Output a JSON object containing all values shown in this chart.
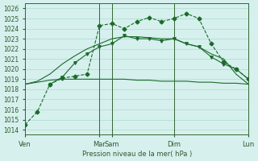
{
  "title": "",
  "xlabel": "Pression niveau de la mer( hPa )",
  "ylim": [
    1013.5,
    1026.5
  ],
  "yticks": [
    1014,
    1015,
    1016,
    1017,
    1018,
    1019,
    1020,
    1021,
    1022,
    1023,
    1024,
    1025,
    1026
  ],
  "bg_color": "#d6f0ee",
  "grid_color": "#aaddcc",
  "line_color": "#1a6b2a",
  "line_color2": "#2d8c4e",
  "xtick_labels": [
    "Ven",
    "",
    "Mar",
    "Sam",
    "",
    "Dim",
    "",
    "Lun"
  ],
  "xtick_positions": [
    0,
    3,
    6,
    7,
    9,
    12,
    15,
    18
  ],
  "day_lines": [
    0,
    6,
    7,
    12,
    18
  ],
  "series1": {
    "x": [
      0,
      1,
      2,
      3,
      4,
      5,
      6,
      7,
      8,
      9,
      10,
      11,
      12,
      13,
      14,
      15,
      16,
      17,
      18
    ],
    "y": [
      1014.5,
      1015.8,
      1018.5,
      1019.1,
      1019.3,
      1019.5,
      1024.3,
      1024.5,
      1024.0,
      1024.7,
      1025.1,
      1024.7,
      1025.0,
      1025.5,
      1025.0,
      1022.5,
      1020.7,
      1020.0,
      1019.0
    ],
    "style": "-o",
    "markersize": 2.5
  },
  "series2": {
    "x": [
      0,
      1,
      2,
      3,
      4,
      5,
      6,
      7,
      8,
      9,
      10,
      11,
      12,
      13,
      14,
      15,
      16,
      17,
      18
    ],
    "y": [
      1018.5,
      1018.8,
      1019.5,
      1020.5,
      1021.3,
      1022.0,
      1022.5,
      1023.0,
      1023.2,
      1023.2,
      1023.1,
      1023.0,
      1023.0,
      1022.5,
      1022.2,
      1021.5,
      1021.0,
      1019.5,
      1018.5
    ],
    "style": "-",
    "markersize": 0
  },
  "series3": {
    "x": [
      0,
      1,
      2,
      3,
      4,
      5,
      6,
      7,
      8,
      9,
      10,
      11,
      12,
      13,
      14,
      15,
      16,
      17,
      18
    ],
    "y": [
      1018.5,
      1018.7,
      1018.9,
      1019.0,
      1019.0,
      1019.0,
      1019.0,
      1019.0,
      1019.0,
      1018.9,
      1018.9,
      1018.8,
      1018.8,
      1018.8,
      1018.7,
      1018.7,
      1018.6,
      1018.6,
      1018.5
    ],
    "style": "-",
    "markersize": 0
  },
  "series4": {
    "x": [
      2,
      3,
      4,
      5,
      6,
      7,
      8,
      9,
      10,
      11,
      12,
      13,
      14,
      15,
      16,
      17,
      18
    ],
    "y": [
      1018.5,
      1019.2,
      1020.6,
      1021.5,
      1022.2,
      1022.5,
      1023.3,
      1023.0,
      1023.0,
      1022.8,
      1023.0,
      1022.5,
      1022.2,
      1021.2,
      1020.5,
      1020.0,
      1019.0
    ],
    "style": "-v",
    "markersize": 2.5
  }
}
